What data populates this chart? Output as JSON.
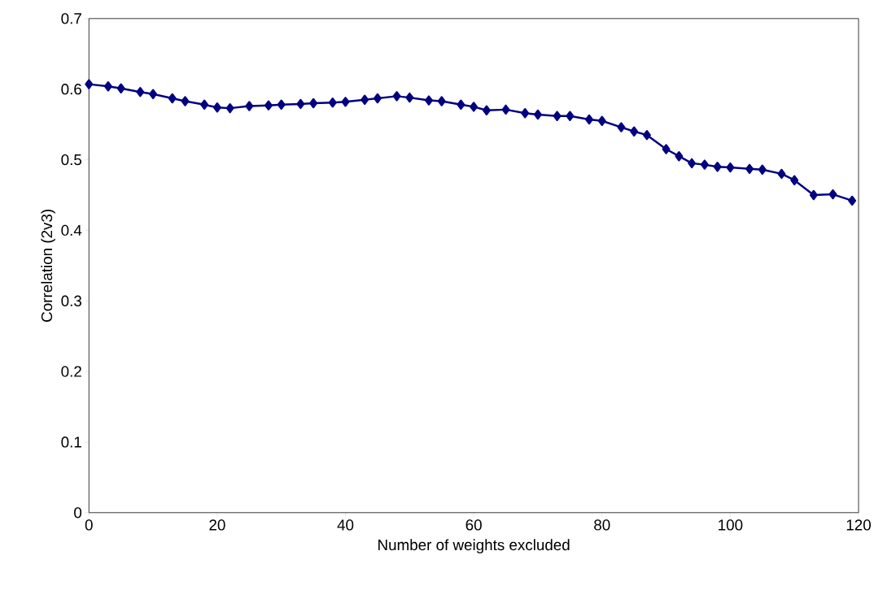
{
  "chart_data": {
    "type": "line",
    "xlabel": "Number of weights excluded",
    "ylabel": "Correlation (2v3)",
    "x": [
      0,
      3,
      5,
      8,
      10,
      13,
      15,
      18,
      20,
      22,
      25,
      28,
      30,
      33,
      35,
      38,
      40,
      43,
      45,
      48,
      50,
      53,
      55,
      58,
      60,
      62,
      65,
      68,
      70,
      73,
      75,
      78,
      80,
      83,
      85,
      87,
      90,
      92,
      94,
      96,
      98,
      100,
      103,
      105,
      108,
      110,
      113,
      116,
      119
    ],
    "series": [
      {
        "color": "#000080",
        "values": [
          0.607,
          0.604,
          0.601,
          0.596,
          0.593,
          0.587,
          0.583,
          0.578,
          0.574,
          0.573,
          0.576,
          0.577,
          0.578,
          0.579,
          0.58,
          0.581,
          0.582,
          0.585,
          0.587,
          0.59,
          0.588,
          0.584,
          0.583,
          0.578,
          0.575,
          0.57,
          0.571,
          0.566,
          0.564,
          0.562,
          0.562,
          0.557,
          0.555,
          0.546,
          0.54,
          0.535,
          0.515,
          0.505,
          0.495,
          0.493,
          0.49,
          0.489,
          0.487,
          0.486,
          0.48,
          0.471,
          0.45,
          0.451,
          0.442
        ]
      }
    ],
    "marker": "diamond",
    "grid": false,
    "xlim": [
      0,
      120
    ],
    "xticks": [
      0,
      20,
      40,
      60,
      80,
      100,
      120
    ],
    "ylim": [
      0,
      0.7
    ],
    "yticks": [
      0,
      0.1,
      0.2,
      0.3,
      0.4,
      0.5,
      0.6,
      0.7
    ]
  }
}
